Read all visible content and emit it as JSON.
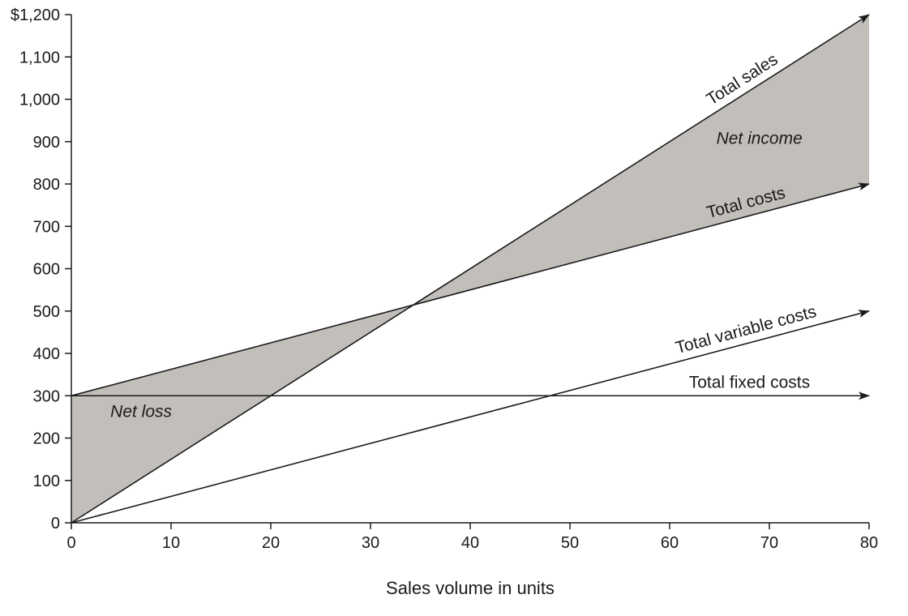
{
  "chart_data": {
    "type": "line",
    "xlabel": "Sales volume in units",
    "ylabel": "",
    "xlim": [
      0,
      80
    ],
    "ylim": [
      0,
      1200
    ],
    "x_ticks": [
      {
        "value": 0,
        "label": "0"
      },
      {
        "value": 10,
        "label": "10"
      },
      {
        "value": 20,
        "label": "20"
      },
      {
        "value": 30,
        "label": "30"
      },
      {
        "value": 40,
        "label": "40"
      },
      {
        "value": 50,
        "label": "50"
      },
      {
        "value": 60,
        "label": "60"
      },
      {
        "value": 70,
        "label": "70"
      },
      {
        "value": 80,
        "label": "80"
      }
    ],
    "y_ticks": [
      {
        "value": 0,
        "label": "0"
      },
      {
        "value": 100,
        "label": "100"
      },
      {
        "value": 200,
        "label": "200"
      },
      {
        "value": 300,
        "label": "300"
      },
      {
        "value": 400,
        "label": "400"
      },
      {
        "value": 500,
        "label": "500"
      },
      {
        "value": 600,
        "label": "600"
      },
      {
        "value": 700,
        "label": "700"
      },
      {
        "value": 800,
        "label": "800"
      },
      {
        "value": 900,
        "label": "900"
      },
      {
        "value": 1000,
        "label": "1,000"
      },
      {
        "value": 1100,
        "label": "1,100"
      },
      {
        "value": 1200,
        "label": "$1,200"
      }
    ],
    "grid": false,
    "series": [
      {
        "name": "Total sales",
        "x": [
          0,
          80
        ],
        "y": [
          0,
          1200
        ],
        "label_at_x": 68
      },
      {
        "name": "Total costs",
        "x": [
          0,
          80
        ],
        "y": [
          300,
          800
        ],
        "label_at_x": 68
      },
      {
        "name": "Total variable costs",
        "x": [
          0,
          80
        ],
        "y": [
          0,
          500
        ],
        "label_at_x": 68
      },
      {
        "name": "Total fixed costs",
        "x": [
          0,
          80
        ],
        "y": [
          300,
          300
        ],
        "label_at_x": 68
      }
    ],
    "regions": [
      {
        "name": "Net loss",
        "between": [
          "Total costs",
          "Total sales"
        ],
        "x_range": [
          0,
          34.3
        ]
      },
      {
        "name": "Net income",
        "between": [
          "Total sales",
          "Total costs"
        ],
        "x_range": [
          34.3,
          80
        ]
      }
    ],
    "annotations": [
      {
        "text": "Net loss",
        "x": 7,
        "y": 250
      },
      {
        "text": "Net income",
        "x": 69,
        "y": 895
      }
    ]
  }
}
